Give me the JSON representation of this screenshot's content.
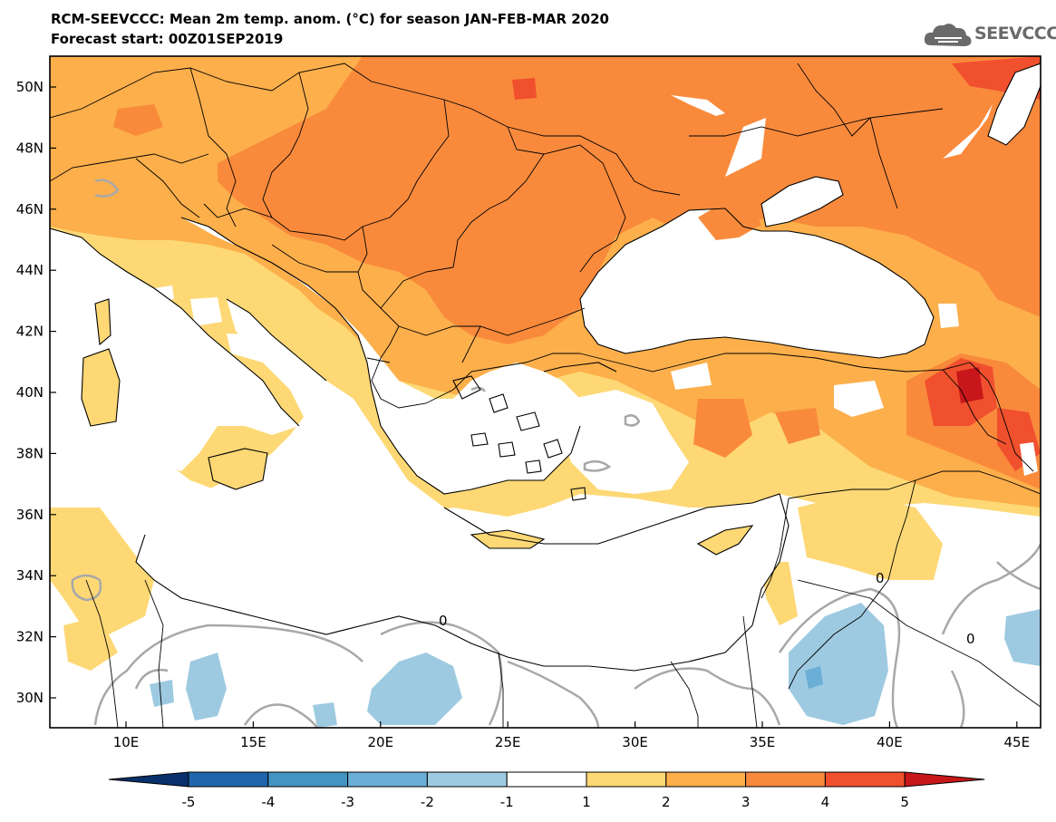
{
  "header": {
    "title_line1": "RCM-SEEVCCC: Mean 2m temp. anom. (°C) for season JAN-FEB-MAR 2020",
    "title_line2": "Forecast start: 00Z01SEP2019",
    "logo_text": "SEEVCCC"
  },
  "map": {
    "region": "South-East Europe / Eastern Mediterranean",
    "lat_labels": [
      "50N",
      "48N",
      "46N",
      "44N",
      "42N",
      "40N",
      "38N",
      "36N",
      "34N",
      "32N",
      "30N"
    ],
    "lon_labels": [
      "10E",
      "15E",
      "20E",
      "25E",
      "30E",
      "35E",
      "40E",
      "45E"
    ],
    "contour_label": "0"
  },
  "colorbar": {
    "levels": [
      "-5",
      "-4",
      "-3",
      "-2",
      "-1",
      "1",
      "2",
      "3",
      "4",
      "5"
    ],
    "colors": [
      "#08306b",
      "#2166ac",
      "#4393c3",
      "#6baed6",
      "#9ecae1",
      "#ffffff",
      "#fdd875",
      "#fcaf4b",
      "#f98a3c",
      "#f0502e",
      "#c8171a"
    ]
  }
}
